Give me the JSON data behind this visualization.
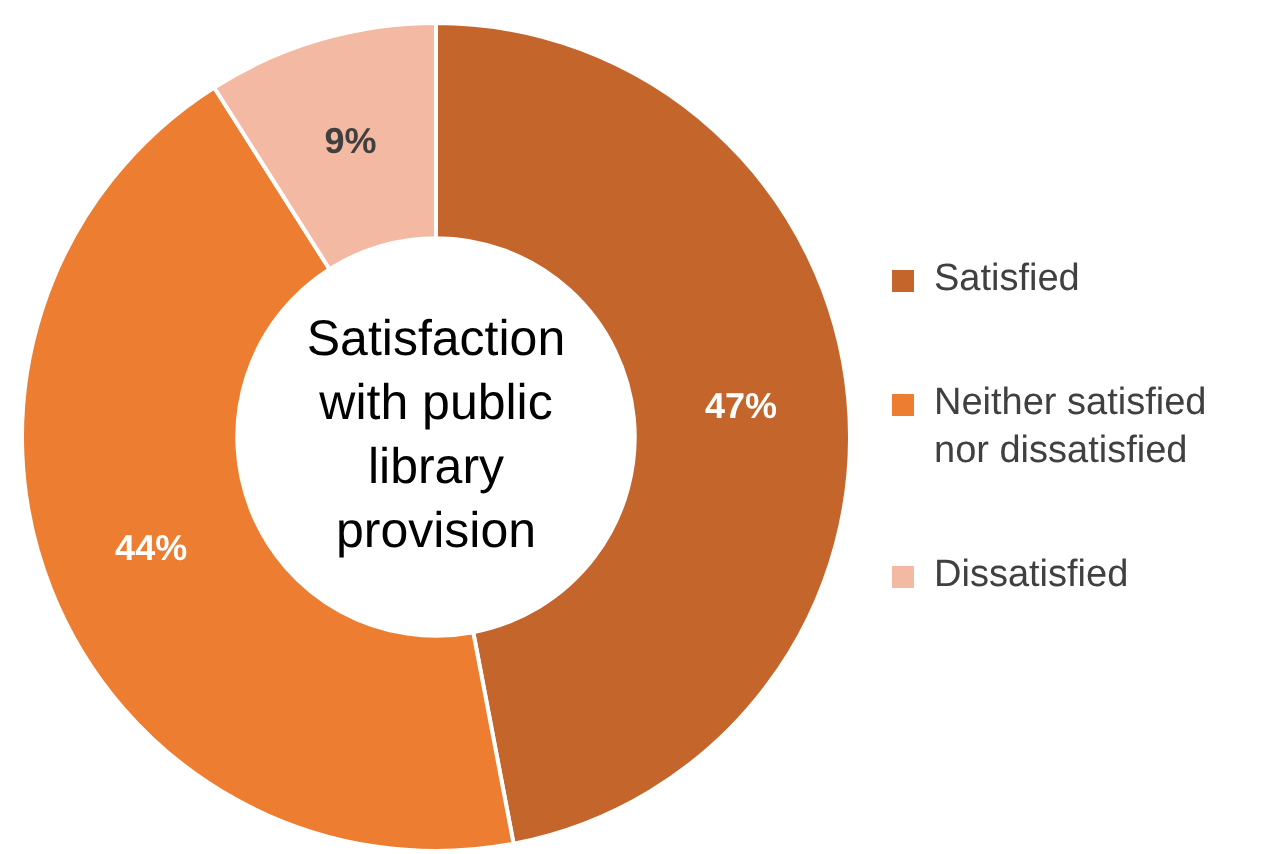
{
  "chart_data": {
    "type": "donut",
    "title": "Satisfaction with public library provision",
    "categories": [
      "Satisfied",
      "Neither satisfied nor dissatisfied",
      "Dissatisfied"
    ],
    "values": [
      47,
      44,
      9
    ],
    "colors": [
      "#c4652b",
      "#ed7d31",
      "#f4b9a2"
    ],
    "value_labels": [
      "47%",
      "44%",
      "9%"
    ],
    "legend": "right"
  }
}
